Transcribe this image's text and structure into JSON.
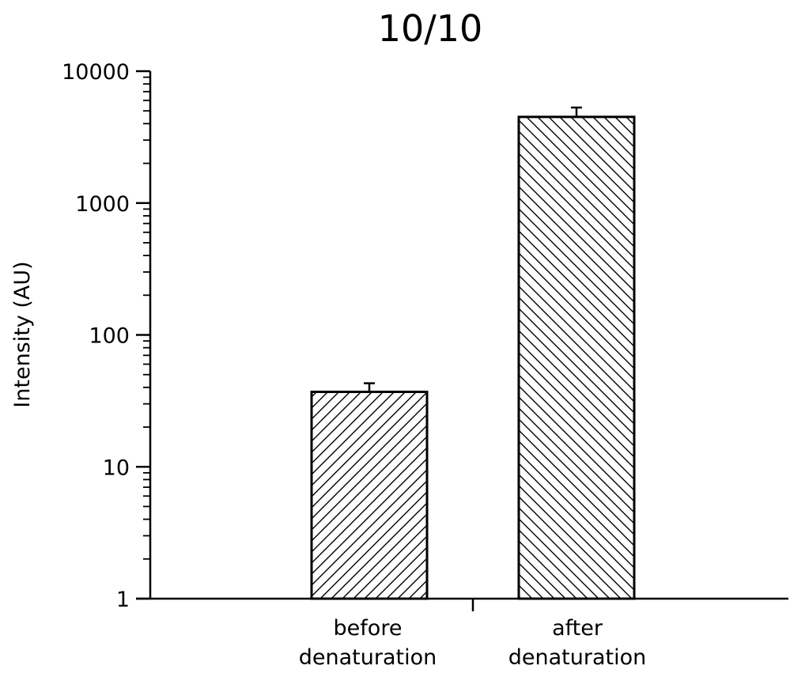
{
  "chart_data": {
    "type": "bar",
    "title": "10/10",
    "ylabel": "Intensity (AU)",
    "xlabel": "",
    "yscale": "log",
    "ylim": [
      1,
      10000
    ],
    "y_ticks": [
      "1",
      "10",
      "100",
      "1000",
      "10000"
    ],
    "grid": false,
    "legend": "none",
    "categories": [
      {
        "line1": "before",
        "line2": "denaturation"
      },
      {
        "line1": "after",
        "line2": "denaturation"
      }
    ],
    "values": [
      37,
      4500
    ],
    "error_upper": [
      43,
      5300
    ],
    "patterns": [
      "hatch-forward",
      "hatch-backward"
    ],
    "colors": {
      "bar_fill": "#ffffff",
      "stroke": "#000000"
    }
  }
}
